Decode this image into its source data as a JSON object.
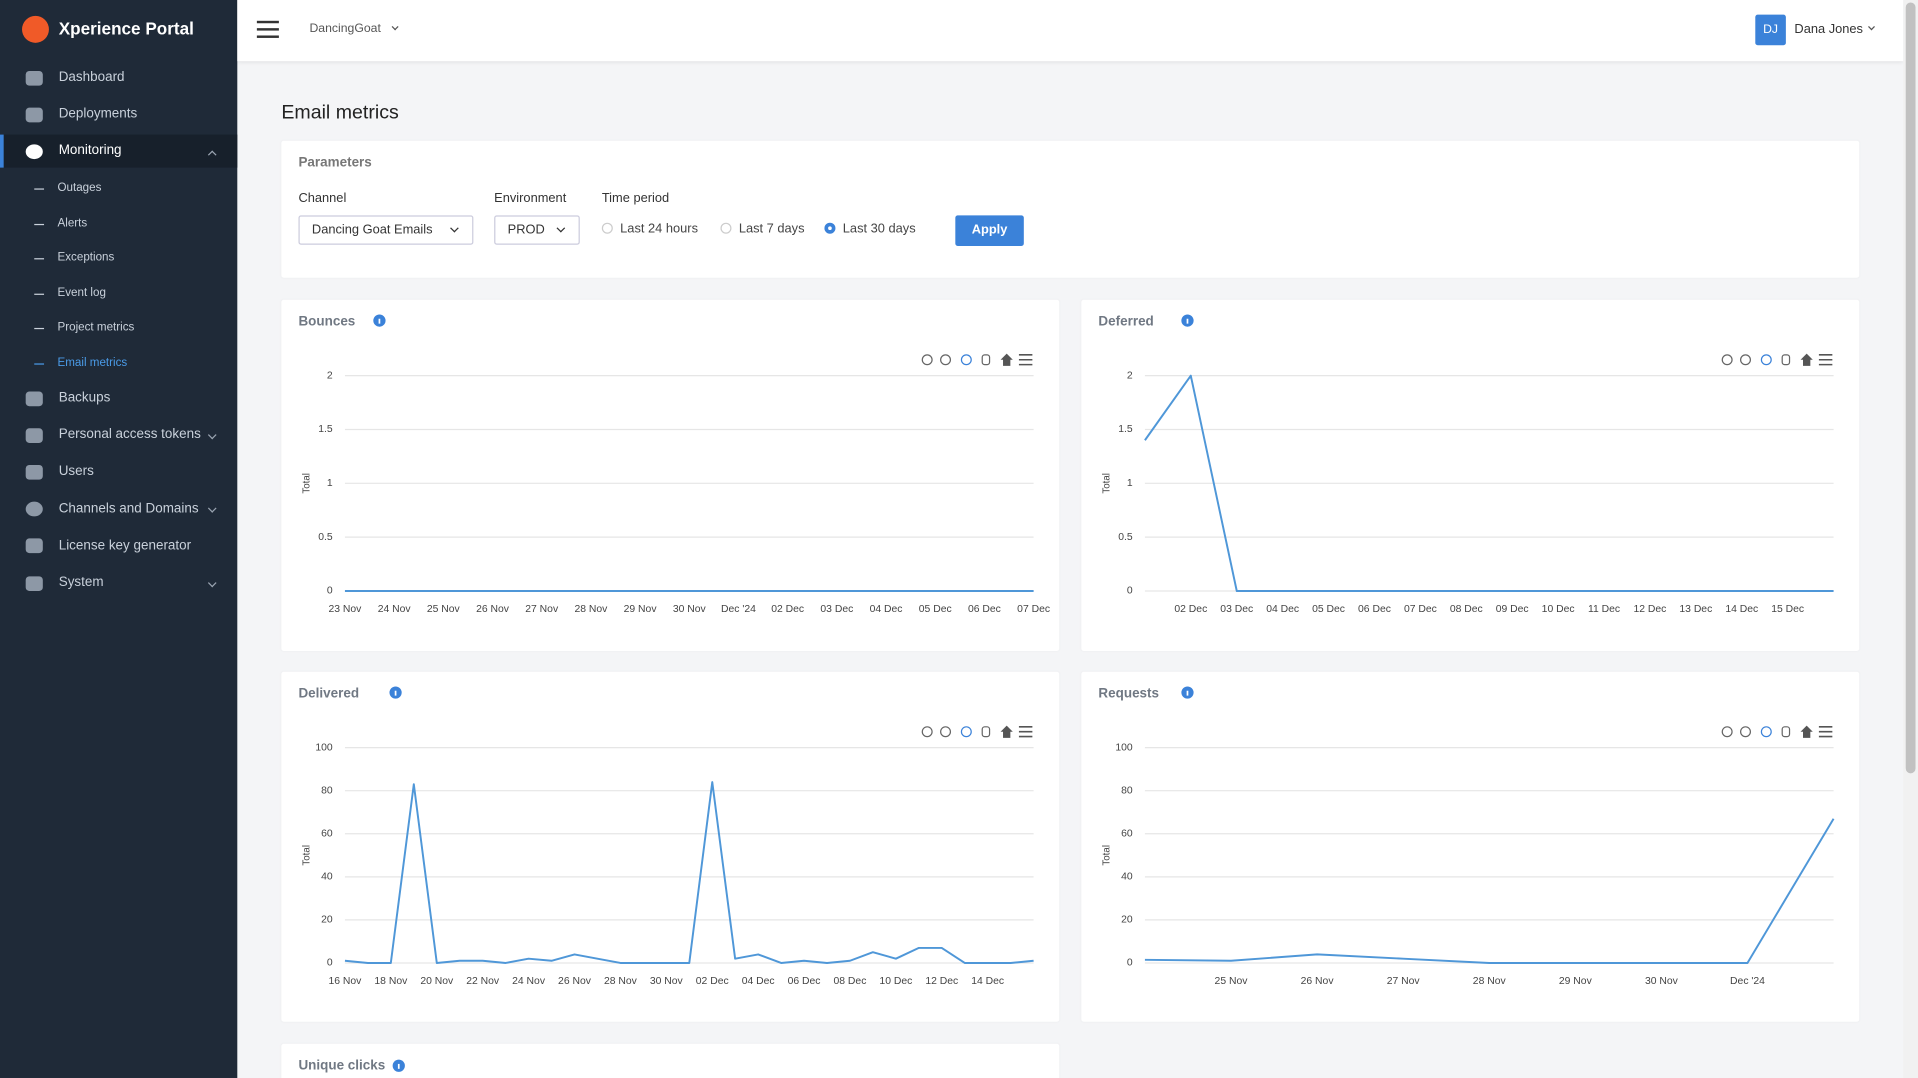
{
  "sidebar": {
    "brand": "Xperience Portal",
    "nav": [
      "Dashboard",
      "Deployments",
      "Monitoring",
      "Backups",
      "Personal access tokens",
      "Users",
      "Channels and Domains",
      "License key generator",
      "System"
    ],
    "subnav": [
      "Outages",
      "Alerts",
      "Exceptions",
      "Event log",
      "Project metrics",
      "Email metrics"
    ]
  },
  "header": {
    "site": "DancingGoat",
    "avatar": "DJ",
    "user": "Dana Jones"
  },
  "page": {
    "title": "Email metrics",
    "parameters": {
      "title": "Parameters",
      "channel_label": "Channel",
      "channel": "Dancing Goat Emails",
      "environment_label": "Environment",
      "environment": "PROD",
      "time_label": "Time period",
      "options": [
        "Last 24 hours",
        "Last 7 days",
        "Last 30 days"
      ],
      "selected": 2,
      "apply": "Apply"
    },
    "extra_card": "Unique clicks"
  },
  "chart_data": [
    {
      "type": "line",
      "title": "Bounces",
      "y_label": "Total",
      "color": "#4f97d8",
      "grid": true,
      "categories": [
        "23 Nov",
        "24 Nov",
        "25 Nov",
        "26 Nov",
        "27 Nov",
        "28 Nov",
        "29 Nov",
        "30 Nov",
        "Dec '24",
        "02 Dec",
        "03 Dec",
        "04 Dec",
        "05 Dec",
        "06 Dec",
        "07 Dec"
      ],
      "values": [
        0,
        0,
        0,
        0,
        0,
        0,
        0,
        0,
        0,
        0,
        0,
        0,
        0,
        0,
        0
      ],
      "ylim": [
        0,
        2
      ],
      "yticks": [
        0,
        0.5,
        1,
        1.5,
        2
      ]
    },
    {
      "type": "line",
      "title": "Deferred",
      "y_label": "Total",
      "color": "#4f97d8",
      "grid": true,
      "categories": [
        null,
        "02 Dec",
        "03 Dec",
        "04 Dec",
        "05 Dec",
        "06 Dec",
        "07 Dec",
        "08 Dec",
        "09 Dec",
        "10 Dec",
        "11 Dec",
        "12 Dec",
        "13 Dec",
        "14 Dec",
        "15 Dec",
        null
      ],
      "values": [
        1.4,
        2,
        0,
        0,
        0,
        0,
        0,
        0,
        0,
        0,
        0,
        0,
        0,
        0,
        0,
        0
      ],
      "ylim": [
        0,
        2
      ],
      "yticks": [
        0,
        0.5,
        1,
        1.5,
        2
      ]
    },
    {
      "type": "line",
      "title": "Delivered",
      "y_label": "Total",
      "color": "#4f97d8",
      "grid": true,
      "categories": [
        "16 Nov",
        null,
        "18 Nov",
        null,
        "20 Nov",
        null,
        "22 Nov",
        null,
        "24 Nov",
        null,
        "26 Nov",
        null,
        "28 Nov",
        null,
        "30 Nov",
        null,
        "02 Dec",
        null,
        "04 Dec",
        null,
        "06 Dec",
        null,
        "08 Dec",
        null,
        "10 Dec",
        null,
        "12 Dec",
        null,
        "14 Dec",
        null,
        null
      ],
      "values": [
        1,
        0,
        0,
        83,
        0,
        1,
        1,
        0,
        2,
        1,
        4,
        2,
        0,
        0,
        0,
        0,
        84,
        2,
        4,
        0,
        1,
        0,
        1,
        5,
        2,
        7,
        7,
        0,
        0,
        0,
        1
      ],
      "ylim": [
        0,
        100
      ],
      "yticks": [
        0,
        20,
        40,
        60,
        80,
        100
      ]
    },
    {
      "type": "line",
      "title": "Requests",
      "y_label": "Total",
      "color": "#4f97d8",
      "grid": true,
      "categories": [
        null,
        "25 Nov",
        "26 Nov",
        "27 Nov",
        "28 Nov",
        "29 Nov",
        "30 Nov",
        "Dec '24",
        null
      ],
      "values": [
        1.5,
        1,
        4,
        2,
        0,
        0,
        0,
        0,
        67
      ],
      "ylim": [
        0,
        100
      ],
      "yticks": [
        0,
        20,
        40,
        60,
        80,
        100
      ]
    }
  ]
}
